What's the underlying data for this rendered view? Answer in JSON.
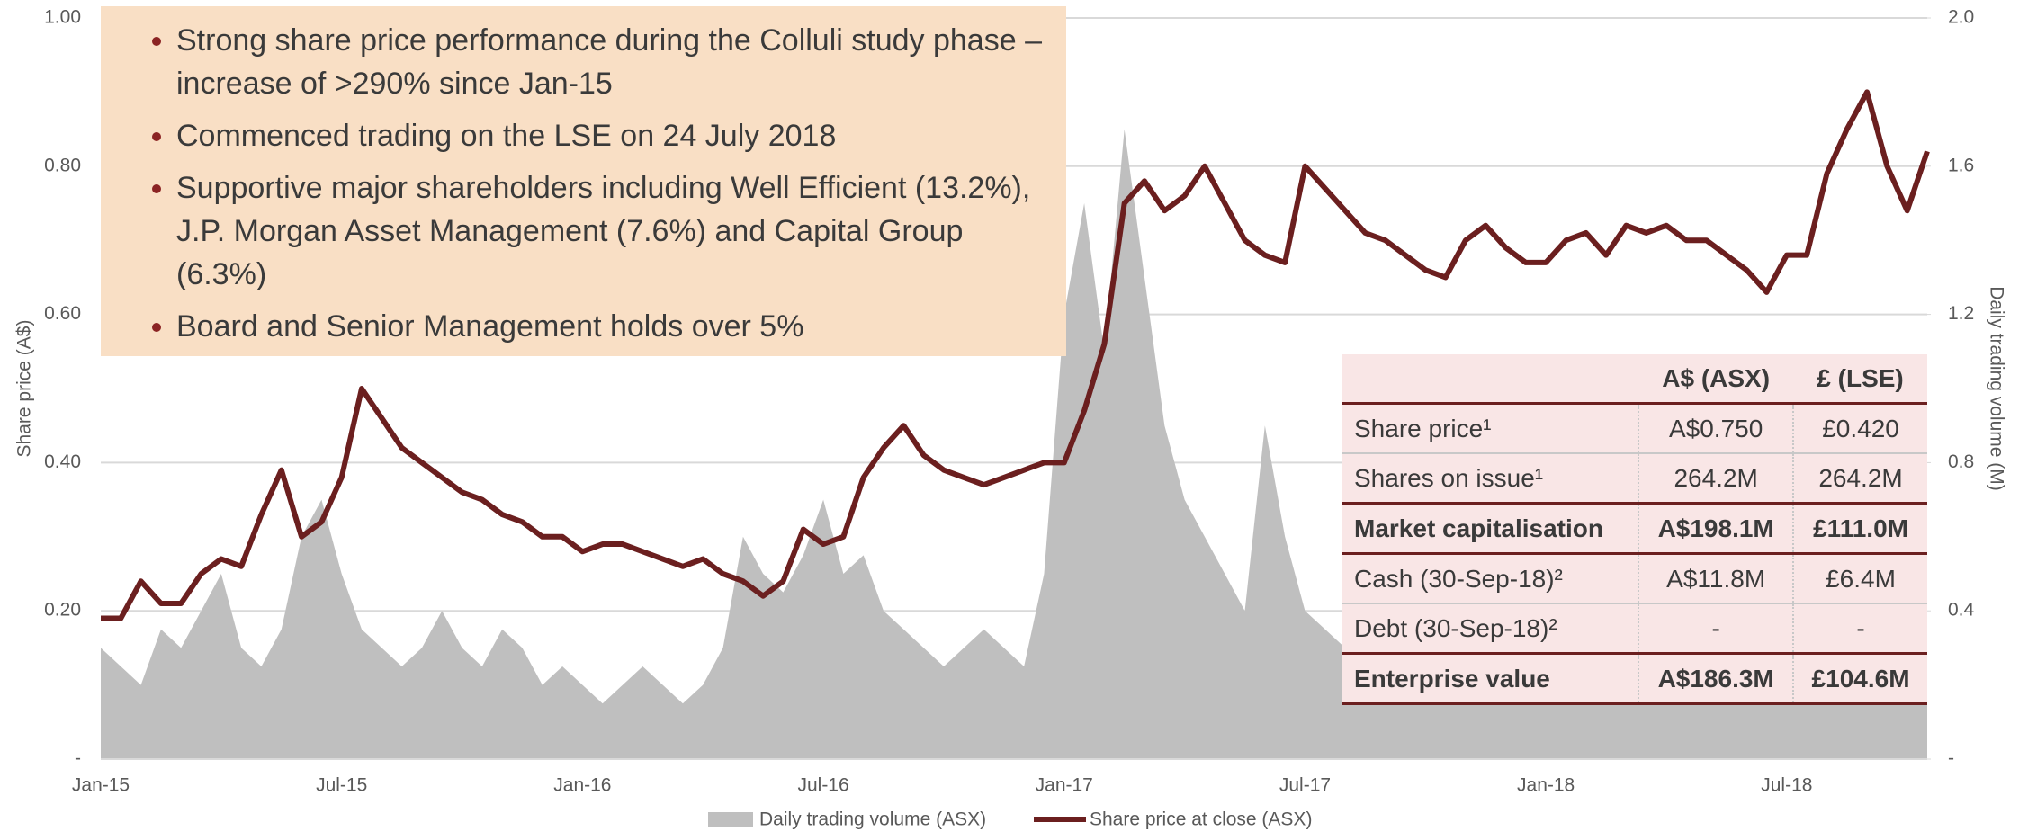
{
  "chart_data": {
    "type": "combo",
    "categories": [
      "Jan-15",
      null,
      null,
      null,
      null,
      null,
      null,
      null,
      null,
      null,
      null,
      null,
      "Jul-15",
      null,
      null,
      null,
      null,
      null,
      null,
      null,
      null,
      null,
      null,
      null,
      "Jan-16",
      null,
      null,
      null,
      null,
      null,
      null,
      null,
      null,
      null,
      null,
      null,
      "Jul-16",
      null,
      null,
      null,
      null,
      null,
      null,
      null,
      null,
      null,
      null,
      null,
      "Jan-17",
      null,
      null,
      null,
      null,
      null,
      null,
      null,
      null,
      null,
      null,
      null,
      "Jul-17",
      null,
      null,
      null,
      null,
      null,
      null,
      null,
      null,
      null,
      null,
      null,
      "Jan-18",
      null,
      null,
      null,
      null,
      null,
      null,
      null,
      null,
      null,
      null,
      null,
      "Jul-18",
      null,
      null,
      null,
      null,
      null,
      null,
      null
    ],
    "series": [
      {
        "name": "Daily trading volume (ASX)",
        "color": "#bfbfbf",
        "style": "area",
        "axis": "y2",
        "values": [
          0.3,
          0.25,
          0.2,
          0.35,
          0.3,
          0.4,
          0.5,
          0.3,
          0.25,
          0.35,
          0.6,
          0.7,
          0.5,
          0.35,
          0.3,
          0.25,
          0.3,
          0.4,
          0.3,
          0.25,
          0.35,
          0.3,
          0.2,
          0.25,
          0.2,
          0.15,
          0.2,
          0.25,
          0.2,
          0.15,
          0.2,
          0.3,
          0.6,
          0.5,
          0.45,
          0.55,
          0.7,
          0.5,
          0.55,
          0.4,
          0.35,
          0.3,
          0.25,
          0.3,
          0.35,
          0.3,
          0.25,
          0.5,
          1.2,
          1.5,
          1.1,
          1.7,
          1.3,
          0.9,
          0.7,
          0.6,
          0.5,
          0.4,
          0.9,
          0.6,
          0.4,
          0.35,
          0.3,
          0.3,
          0.35,
          0.3,
          0.4,
          0.35,
          0.3,
          0.25,
          0.3,
          0.35,
          0.3,
          0.25,
          0.3,
          0.3,
          0.25,
          0.2,
          0.25,
          0.3,
          0.25,
          0.3,
          0.35,
          0.3,
          0.4,
          0.5,
          0.45,
          0.4,
          0.3,
          0.35,
          0.3,
          0.2
        ]
      },
      {
        "name": "Share price at close (ASX)",
        "color": "#6b1f1f",
        "style": "line",
        "axis": "y",
        "values": [
          0.19,
          0.19,
          0.24,
          0.21,
          0.21,
          0.25,
          0.27,
          0.26,
          0.33,
          0.39,
          0.3,
          0.32,
          0.38,
          0.5,
          0.46,
          0.42,
          0.4,
          0.38,
          0.36,
          0.35,
          0.33,
          0.32,
          0.3,
          0.3,
          0.28,
          0.29,
          0.29,
          0.28,
          0.27,
          0.26,
          0.27,
          0.25,
          0.24,
          0.22,
          0.24,
          0.31,
          0.29,
          0.3,
          0.38,
          0.42,
          0.45,
          0.41,
          0.39,
          0.38,
          0.37,
          0.38,
          0.39,
          0.4,
          0.4,
          0.47,
          0.56,
          0.75,
          0.78,
          0.74,
          0.76,
          0.8,
          0.75,
          0.7,
          0.68,
          0.67,
          0.8,
          0.77,
          0.74,
          0.71,
          0.7,
          0.68,
          0.66,
          0.65,
          0.7,
          0.72,
          0.69,
          0.67,
          0.67,
          0.7,
          0.71,
          0.68,
          0.72,
          0.71,
          0.72,
          0.7,
          0.7,
          0.68,
          0.66,
          0.63,
          0.68,
          0.68,
          0.79,
          0.85,
          0.9,
          0.8,
          0.74,
          0.82
        ]
      }
    ],
    "ylabel": "Share price (A$)",
    "y2label": "Daily trading volume (M)",
    "ylim": [
      0,
      1
    ],
    "yticks": [
      {
        "value": 0,
        "label": "-"
      },
      {
        "value": 0.2,
        "label": "0.20"
      },
      {
        "value": 0.4,
        "label": "0.40"
      },
      {
        "value": 0.6,
        "label": "0.60"
      },
      {
        "value": 0.8,
        "label": "0.80"
      },
      {
        "value": 1,
        "label": "1.00"
      }
    ],
    "y2lim": [
      0,
      2
    ],
    "y2ticks": [
      {
        "value": 0,
        "label": "-"
      },
      0.4,
      0.8,
      1.2,
      1.6,
      {
        "value": 2,
        "label": "2.0"
      }
    ],
    "grid": true,
    "legend": "bottom"
  },
  "bullets": [
    "Strong share price performance during the Colluli study phase – increase of >290% since Jan-15",
    "Commenced trading on the LSE on 24 July 2018",
    "Supportive major shareholders including Well Efficient (13.2%), J.P. Morgan Asset Management (7.6%) and Capital Group (6.3%)",
    "Board and Senior Management holds over 5%"
  ],
  "table": {
    "header": [
      "A$ (ASX)",
      "£ (LSE)"
    ],
    "rows": [
      {
        "cells": [
          "Share price¹",
          "A$0.750",
          "£0.420"
        ],
        "bold": false
      },
      {
        "cells": [
          "Shares on issue¹",
          "264.2M",
          "264.2M"
        ],
        "bold": false
      },
      {
        "cells": [
          "Market capitalisation",
          "A$198.1M",
          "£111.0M"
        ],
        "bold": true
      },
      {
        "cells": [
          "Cash (30-Sep-18)²",
          "A$11.8M",
          "£6.4M"
        ],
        "bold": false
      },
      {
        "cells": [
          "Debt (30-Sep-18)²",
          "-",
          "-"
        ],
        "bold": false
      },
      {
        "cells": [
          "Enterprise value",
          "A$186.3M",
          "£104.6M"
        ],
        "bold": true
      }
    ]
  }
}
